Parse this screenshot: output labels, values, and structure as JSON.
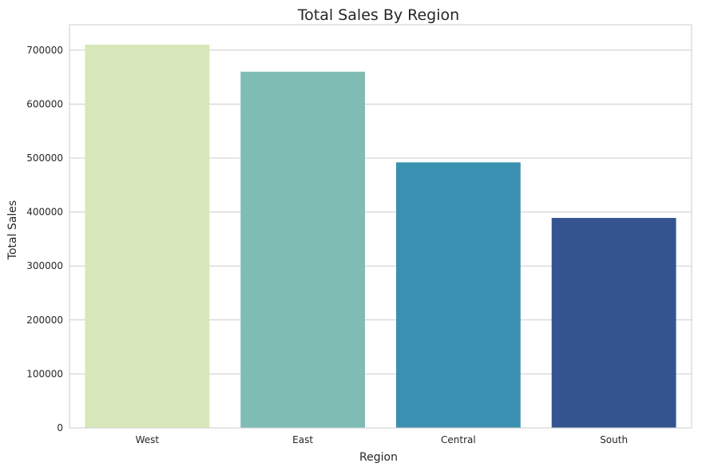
{
  "chart_data": {
    "type": "bar",
    "title": "Total Sales By Region",
    "xlabel": "Region",
    "ylabel": "Total Sales",
    "categories": [
      "West",
      "East",
      "Central",
      "South"
    ],
    "values": [
      710000,
      660000,
      492000,
      389000
    ],
    "ylim": [
      0,
      747000
    ],
    "yticks": [
      0,
      100000,
      200000,
      300000,
      400000,
      500000,
      600000,
      700000
    ],
    "ytick_labels": [
      "0",
      "100000",
      "200000",
      "300000",
      "400000",
      "500000",
      "600000",
      "700000"
    ],
    "colors": [
      "#d6e7b9",
      "#7fbdb4",
      "#3a90b0",
      "#34548f"
    ],
    "grid": "horizontal",
    "legend": "none"
  }
}
